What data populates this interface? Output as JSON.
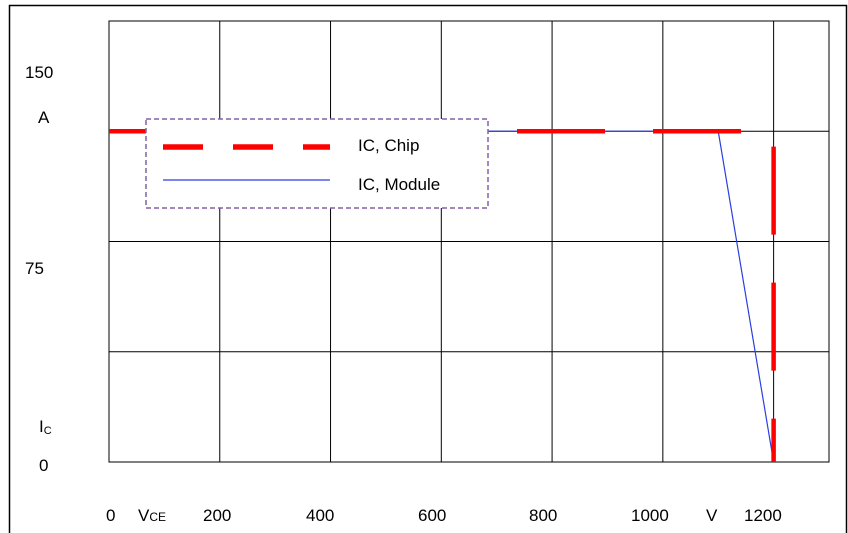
{
  "colors": {
    "chip": "#ff0000",
    "module": "#2b3fe0",
    "legend_border": "#8060a8",
    "grid": "#000000",
    "frame": "#000000"
  },
  "chart_data": {
    "type": "line",
    "xlim": [
      0,
      1300
    ],
    "ylim": [
      0,
      200
    ],
    "x_ticks": [
      0,
      200,
      400,
      600,
      800,
      1000,
      1200
    ],
    "x_tick_labels": [
      "0",
      "200",
      "400",
      "600",
      "800",
      "1000",
      "1200"
    ],
    "x_grid": [
      200,
      400,
      600,
      800,
      1000,
      1200
    ],
    "y_tick_labels": [
      "150",
      "75",
      "0"
    ],
    "y_grid": [
      50,
      100,
      150,
      200
    ],
    "xlabel_symbol": {
      "main": "V",
      "sub": "CE"
    },
    "xunit": "V",
    "ylabel_symbol": {
      "main": "I",
      "sub": "C"
    },
    "yunit": "A",
    "grid": true,
    "legend_position": "upper-left",
    "series": [
      {
        "name": "IC, Chip",
        "style": "dashed",
        "x": [
          0,
          1200,
          1200
        ],
        "y": [
          150,
          150,
          0
        ]
      },
      {
        "name": "IC, Module",
        "style": "solid",
        "x": [
          0,
          1100,
          1200
        ],
        "y": [
          150,
          150,
          0
        ]
      }
    ]
  }
}
